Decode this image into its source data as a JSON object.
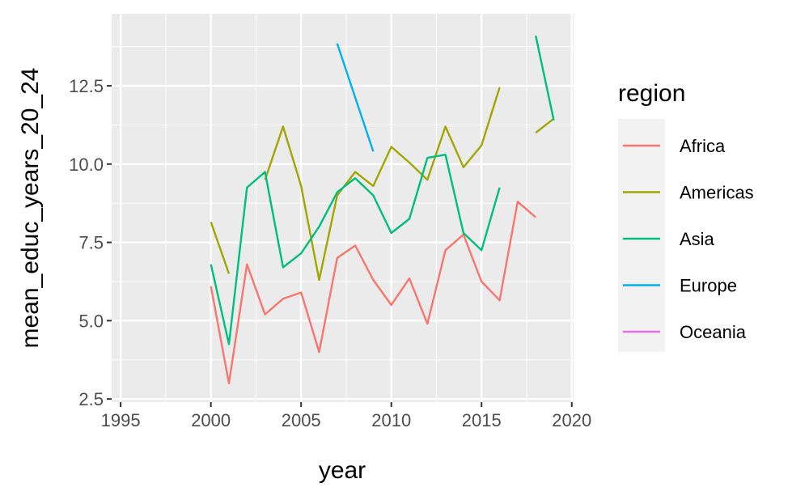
{
  "chart_data": {
    "type": "line",
    "xlabel": "year",
    "ylabel": "mean_educ_years_20_24",
    "xlim": [
      1994.5,
      2020.1
    ],
    "ylim": [
      2.4,
      14.8
    ],
    "x_ticks": [
      1995,
      2000,
      2005,
      2010,
      2015,
      2020
    ],
    "x_tick_labels": [
      "1995",
      "2000",
      "2005",
      "2010",
      "2015",
      "2020"
    ],
    "y_ticks": [
      2.5,
      5.0,
      7.5,
      10.0,
      12.5
    ],
    "y_tick_labels": [
      "2.5",
      "5.0",
      "7.5",
      "10.0",
      "12.5"
    ],
    "grid": true,
    "legend": {
      "title": "region",
      "position": "right"
    },
    "series": [
      {
        "name": "Africa",
        "color": "#F8766D",
        "segments": [
          [
            [
              2000,
              6.1
            ],
            [
              2001,
              3.0
            ],
            [
              2002,
              6.8
            ],
            [
              2003,
              5.2
            ],
            [
              2004,
              5.7
            ],
            [
              2005,
              5.9
            ],
            [
              2006,
              4.0
            ],
            [
              2007,
              7.0
            ],
            [
              2008,
              7.4
            ],
            [
              2009,
              6.3
            ],
            [
              2010,
              5.5
            ],
            [
              2011,
              6.35
            ],
            [
              2012,
              4.9
            ],
            [
              2013,
              7.25
            ],
            [
              2014,
              7.75
            ],
            [
              2015,
              6.25
            ],
            [
              2016,
              5.65
            ],
            [
              2017,
              8.8
            ],
            [
              2018,
              8.3
            ]
          ]
        ]
      },
      {
        "name": "Americas",
        "color": "#A3A500",
        "segments": [
          [
            [
              2000,
              8.15
            ],
            [
              2001,
              6.5
            ]
          ],
          [
            [
              2003,
              9.5
            ],
            [
              2004,
              11.2
            ],
            [
              2005,
              9.3
            ],
            [
              2006,
              6.3
            ],
            [
              2007,
              9.0
            ],
            [
              2008,
              9.75
            ],
            [
              2009,
              9.3
            ],
            [
              2010,
              10.55
            ],
            [
              2011,
              10.05
            ],
            [
              2012,
              9.5
            ],
            [
              2013,
              11.2
            ],
            [
              2014,
              9.9
            ],
            [
              2015,
              10.6
            ],
            [
              2016,
              12.45
            ]
          ],
          [
            [
              2018,
              11.0
            ],
            [
              2019,
              11.45
            ]
          ]
        ]
      },
      {
        "name": "Asia",
        "color": "#00BF7D",
        "segments": [
          [
            [
              2000,
              6.8
            ],
            [
              2001,
              4.25
            ],
            [
              2002,
              9.25
            ],
            [
              2003,
              9.75
            ],
            [
              2004,
              6.7
            ],
            [
              2005,
              7.15
            ],
            [
              2006,
              8.0
            ],
            [
              2007,
              9.1
            ],
            [
              2008,
              9.55
            ],
            [
              2009,
              9.0
            ],
            [
              2010,
              7.8
            ],
            [
              2011,
              8.25
            ],
            [
              2012,
              10.2
            ],
            [
              2013,
              10.3
            ],
            [
              2014,
              7.8
            ],
            [
              2015,
              7.25
            ],
            [
              2016,
              9.25
            ]
          ],
          [
            [
              2018,
              14.1
            ],
            [
              2019,
              11.4
            ]
          ]
        ]
      },
      {
        "name": "Europe",
        "color": "#00B0F6",
        "segments": [
          [
            [
              2007,
              13.85
            ],
            [
              2009,
              10.4
            ]
          ]
        ]
      },
      {
        "name": "Oceania",
        "color": "#E76BF3",
        "segments": []
      }
    ]
  }
}
